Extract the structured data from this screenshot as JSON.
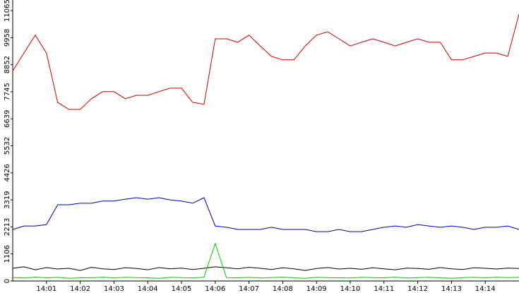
{
  "chart_data": {
    "type": "line",
    "x": [
      "14:00:00",
      "14:00:20",
      "14:00:40",
      "14:01:00",
      "14:01:20",
      "14:01:40",
      "14:02:00",
      "14:02:20",
      "14:02:40",
      "14:03:00",
      "14:03:20",
      "14:03:40",
      "14:04:00",
      "14:04:20",
      "14:04:40",
      "14:05:00",
      "14:05:20",
      "14:05:40",
      "14:06:00",
      "14:06:20",
      "14:06:40",
      "14:07:00",
      "14:07:20",
      "14:07:40",
      "14:08:00",
      "14:08:20",
      "14:08:40",
      "14:09:00",
      "14:09:20",
      "14:09:40",
      "14:10:00",
      "14:10:20",
      "14:10:40",
      "14:11:00",
      "14:11:20",
      "14:11:40",
      "14:12:00",
      "14:12:20",
      "14:12:40",
      "14:13:00",
      "14:13:20",
      "14:13:40",
      "14:14:00",
      "14:14:20",
      "14:14:40",
      "14:15:00"
    ],
    "series": [
      {
        "color": "#cc0000",
        "values": [
          8600,
          9330,
          10060,
          9330,
          7310,
          7020,
          7020,
          7460,
          7750,
          7750,
          7460,
          7600,
          7600,
          7750,
          7890,
          7890,
          7310,
          7230,
          9910,
          9910,
          9770,
          10060,
          9620,
          9190,
          9050,
          9050,
          9620,
          10060,
          10200,
          9910,
          9620,
          9770,
          9910,
          9770,
          9620,
          9770,
          9910,
          9770,
          9770,
          9050,
          9050,
          9190,
          9330,
          9330,
          9190,
          10920
        ]
      },
      {
        "color": "#0000aa",
        "values": [
          2110,
          2250,
          2250,
          2310,
          3120,
          3120,
          3180,
          3180,
          3270,
          3270,
          3350,
          3410,
          3350,
          3410,
          3320,
          3270,
          3180,
          3410,
          2250,
          2200,
          2110,
          2110,
          2110,
          2200,
          2110,
          2110,
          2110,
          2020,
          2020,
          2110,
          2020,
          2020,
          2110,
          2200,
          2250,
          2200,
          2310,
          2250,
          2200,
          2250,
          2200,
          2110,
          2200,
          2200,
          2250,
          2110
        ]
      },
      {
        "color": "#000000",
        "values": [
          520,
          580,
          460,
          550,
          490,
          520,
          430,
          560,
          500,
          470,
          540,
          510,
          460,
          550,
          500,
          530,
          470,
          520,
          580,
          540,
          500,
          560,
          520,
          470,
          540,
          500,
          430,
          510,
          550,
          490,
          520,
          480,
          540,
          500,
          460,
          530,
          510,
          480,
          550,
          500,
          470,
          540,
          520,
          490,
          530,
          510
        ]
      },
      {
        "color": "#00cc00",
        "values": [
          145,
          120,
          160,
          130,
          150,
          110,
          140,
          130,
          160,
          120,
          150,
          140,
          130,
          110,
          150,
          140,
          120,
          160,
          1530,
          140,
          130,
          150,
          120,
          140,
          160,
          130,
          110,
          150,
          140,
          130,
          120,
          150,
          140,
          130,
          160,
          120,
          140,
          150,
          130,
          110,
          140,
          150,
          130,
          160,
          140,
          150
        ]
      }
    ],
    "xlim": [
      "14:00",
      "14:15"
    ],
    "xticks": [
      "14:01",
      "14:02",
      "14:03",
      "14:04",
      "14:05",
      "14:06",
      "14:07",
      "14:08",
      "14:09",
      "14:10",
      "14:11",
      "14:12",
      "14:13",
      "14:14"
    ],
    "ylim": [
      0,
      11500
    ],
    "yticks": [
      0,
      1106,
      2213,
      3319,
      4426,
      5532,
      6639,
      7745,
      8852,
      9958,
      11065
    ]
  }
}
